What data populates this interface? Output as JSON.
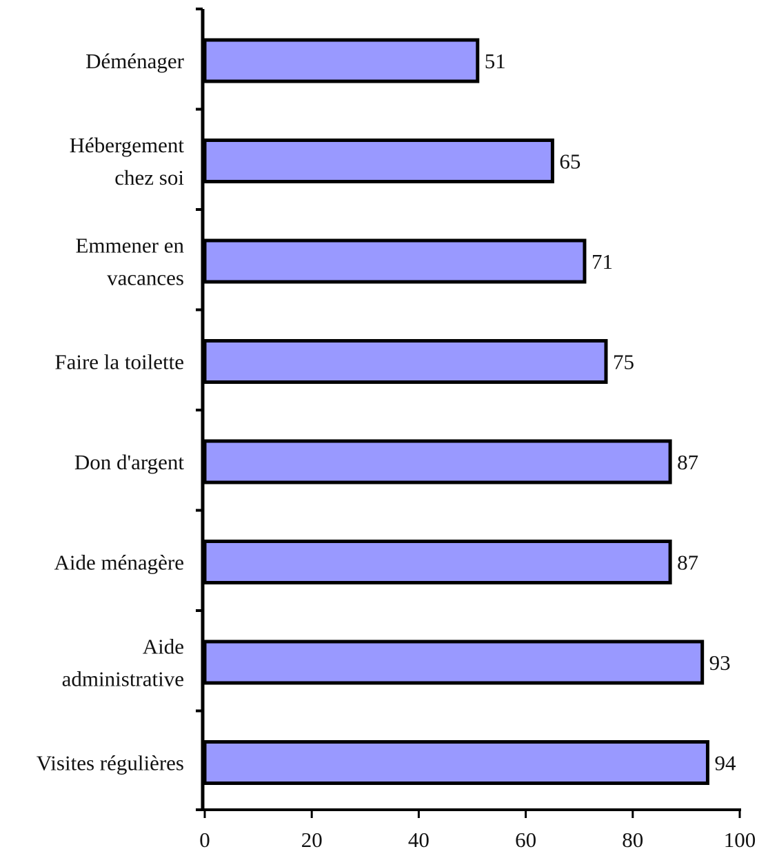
{
  "chart_data": {
    "type": "bar",
    "orientation": "horizontal",
    "categories": [
      [
        "Déménager"
      ],
      [
        "Hébergement",
        "chez soi"
      ],
      [
        "Emmener en",
        "vacances"
      ],
      [
        "Faire la toilette"
      ],
      [
        "Don d'argent"
      ],
      [
        "Aide ménagère"
      ],
      [
        "Aide",
        "administrative"
      ],
      [
        "Visites régulières"
      ]
    ],
    "values": [
      51,
      65,
      71,
      75,
      87,
      87,
      93,
      94
    ],
    "data_labels": [
      "51",
      "65",
      "71",
      "75",
      "87",
      "87",
      "93",
      "94"
    ],
    "xlim": [
      0,
      100
    ],
    "xticks": [
      0,
      20,
      40,
      60,
      80,
      100
    ],
    "xtick_labels": [
      "0",
      "20",
      "40",
      "60",
      "80",
      "100"
    ],
    "title": "",
    "xlabel": "",
    "ylabel": "",
    "grid": false,
    "legend": "none",
    "bar_color": "#9999ff",
    "bar_border_color": "#000000"
  }
}
